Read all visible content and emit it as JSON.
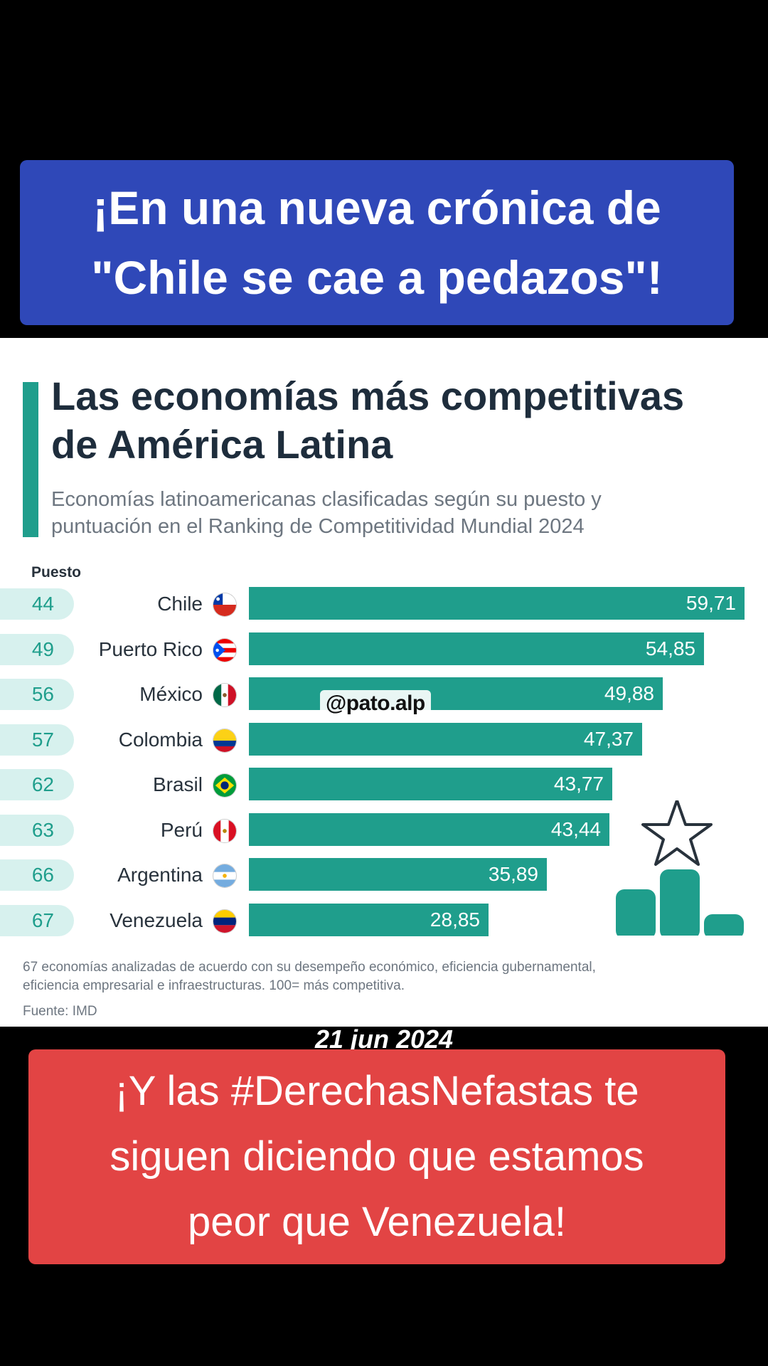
{
  "captions": {
    "top": [
      "¡En una nueva crónica de",
      "\"Chile se cae a pedazos\"!"
    ],
    "bottom": [
      "¡Y las #DerechasNefastas te",
      "siguen diciendo que estamos",
      "peor que Venezuela!"
    ],
    "date": "21 jun 2024",
    "watermark": "@pato.alp"
  },
  "chart_data": {
    "type": "bar",
    "title": "Las economías más competitivas de América Latina",
    "title_lines": [
      "Las economías más competitivas",
      "de América Latina"
    ],
    "subtitle": "Economías latinoamericanas clasificadas según su puesto y puntuación en el Ranking de Competitividad Mundial 2024",
    "subtitle_lines": [
      "Economías latinoamericanas clasificadas según su puesto y",
      "puntuación en el Ranking de Competitividad Mundial 2024"
    ],
    "rank_header": "Puesto",
    "categories": [
      "Chile",
      "Puerto Rico",
      "México",
      "Colombia",
      "Brasil",
      "Perú",
      "Argentina",
      "Venezuela"
    ],
    "ranks": [
      "44",
      "49",
      "56",
      "57",
      "62",
      "63",
      "66",
      "67"
    ],
    "values": [
      59.71,
      54.85,
      49.88,
      47.37,
      43.77,
      43.44,
      35.89,
      28.85
    ],
    "value_labels": [
      "59,71",
      "54,85",
      "49,88",
      "47,37",
      "43,77",
      "43,44",
      "35,89",
      "28,85"
    ],
    "footnote_lines": [
      "67 economías analizadas de acuerdo con su desempeño económico, eficiencia gubernamental,",
      "eficiencia empresarial e infraestructuras. 100= más competitiva."
    ],
    "source": "Fuente: IMD",
    "bar_color": "#1f9e8c",
    "pill_color": "#d7f1ee"
  }
}
